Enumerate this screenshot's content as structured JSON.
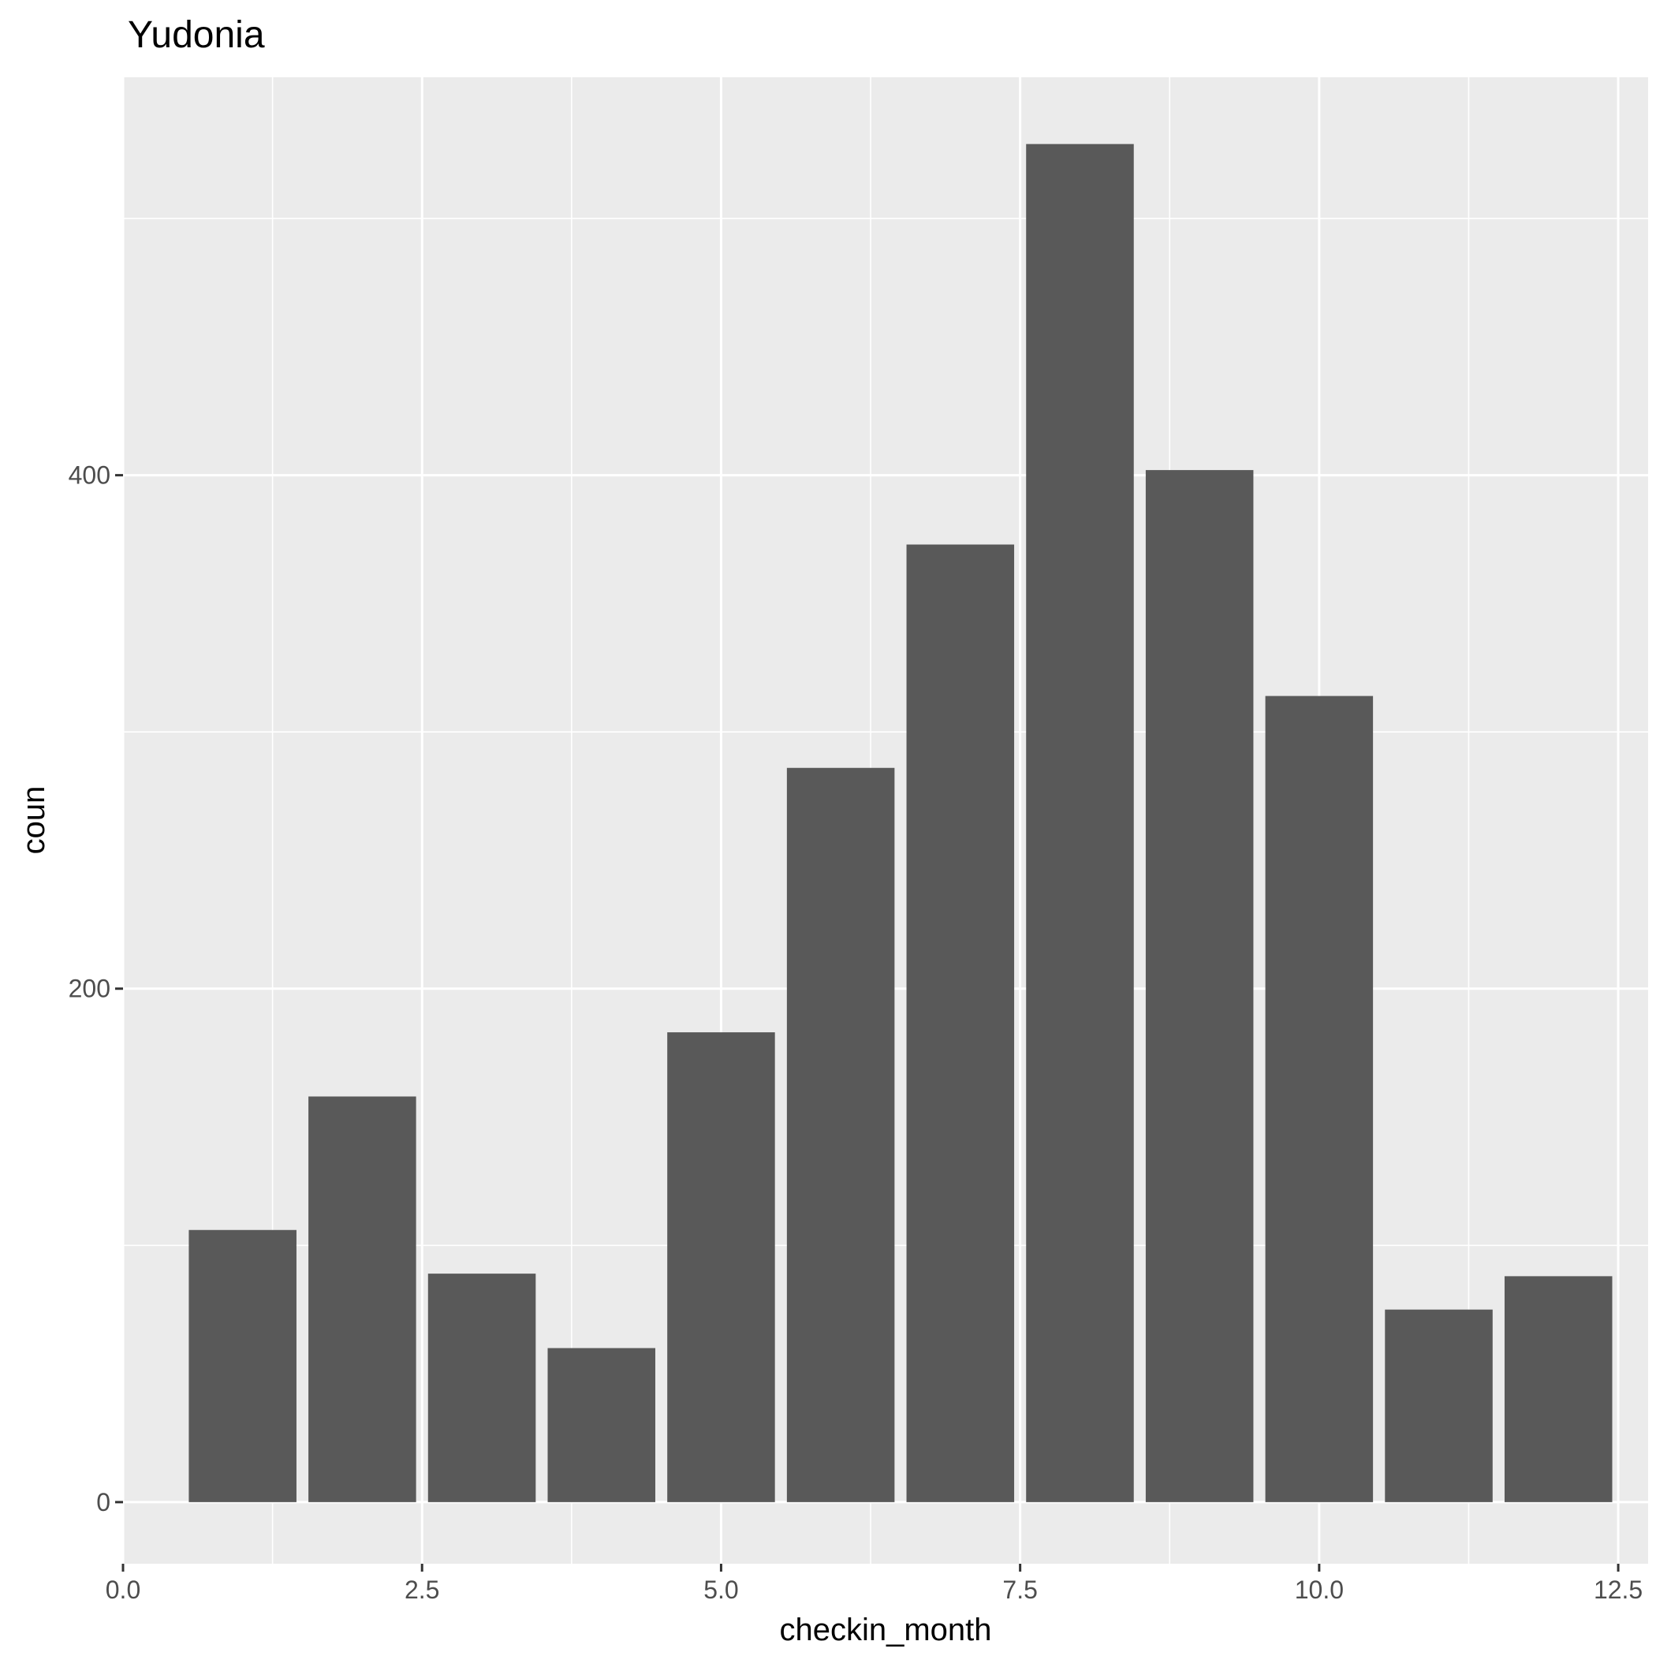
{
  "chart_data": {
    "type": "bar",
    "title": "Yudonia",
    "xlabel": "checkin_month",
    "ylabel": "coun",
    "x": [
      1,
      2,
      3,
      4,
      5,
      6,
      7,
      8,
      9,
      10,
      11,
      12
    ],
    "values": [
      106,
      158,
      89,
      60,
      183,
      286,
      373,
      529,
      402,
      314,
      75,
      88
    ],
    "xlim": [
      0,
      12.75
    ],
    "ylim": [
      -24,
      555
    ],
    "x_ticks": [
      "0.0",
      "2.5",
      "5.0",
      "7.5",
      "10.0",
      "12.5"
    ],
    "y_ticks": [
      "0",
      "200",
      "400"
    ],
    "grid": true,
    "colors": {
      "bar": "#595959",
      "panel": "#ebebeb",
      "grid": "#ffffff",
      "tick": "#333333"
    }
  }
}
